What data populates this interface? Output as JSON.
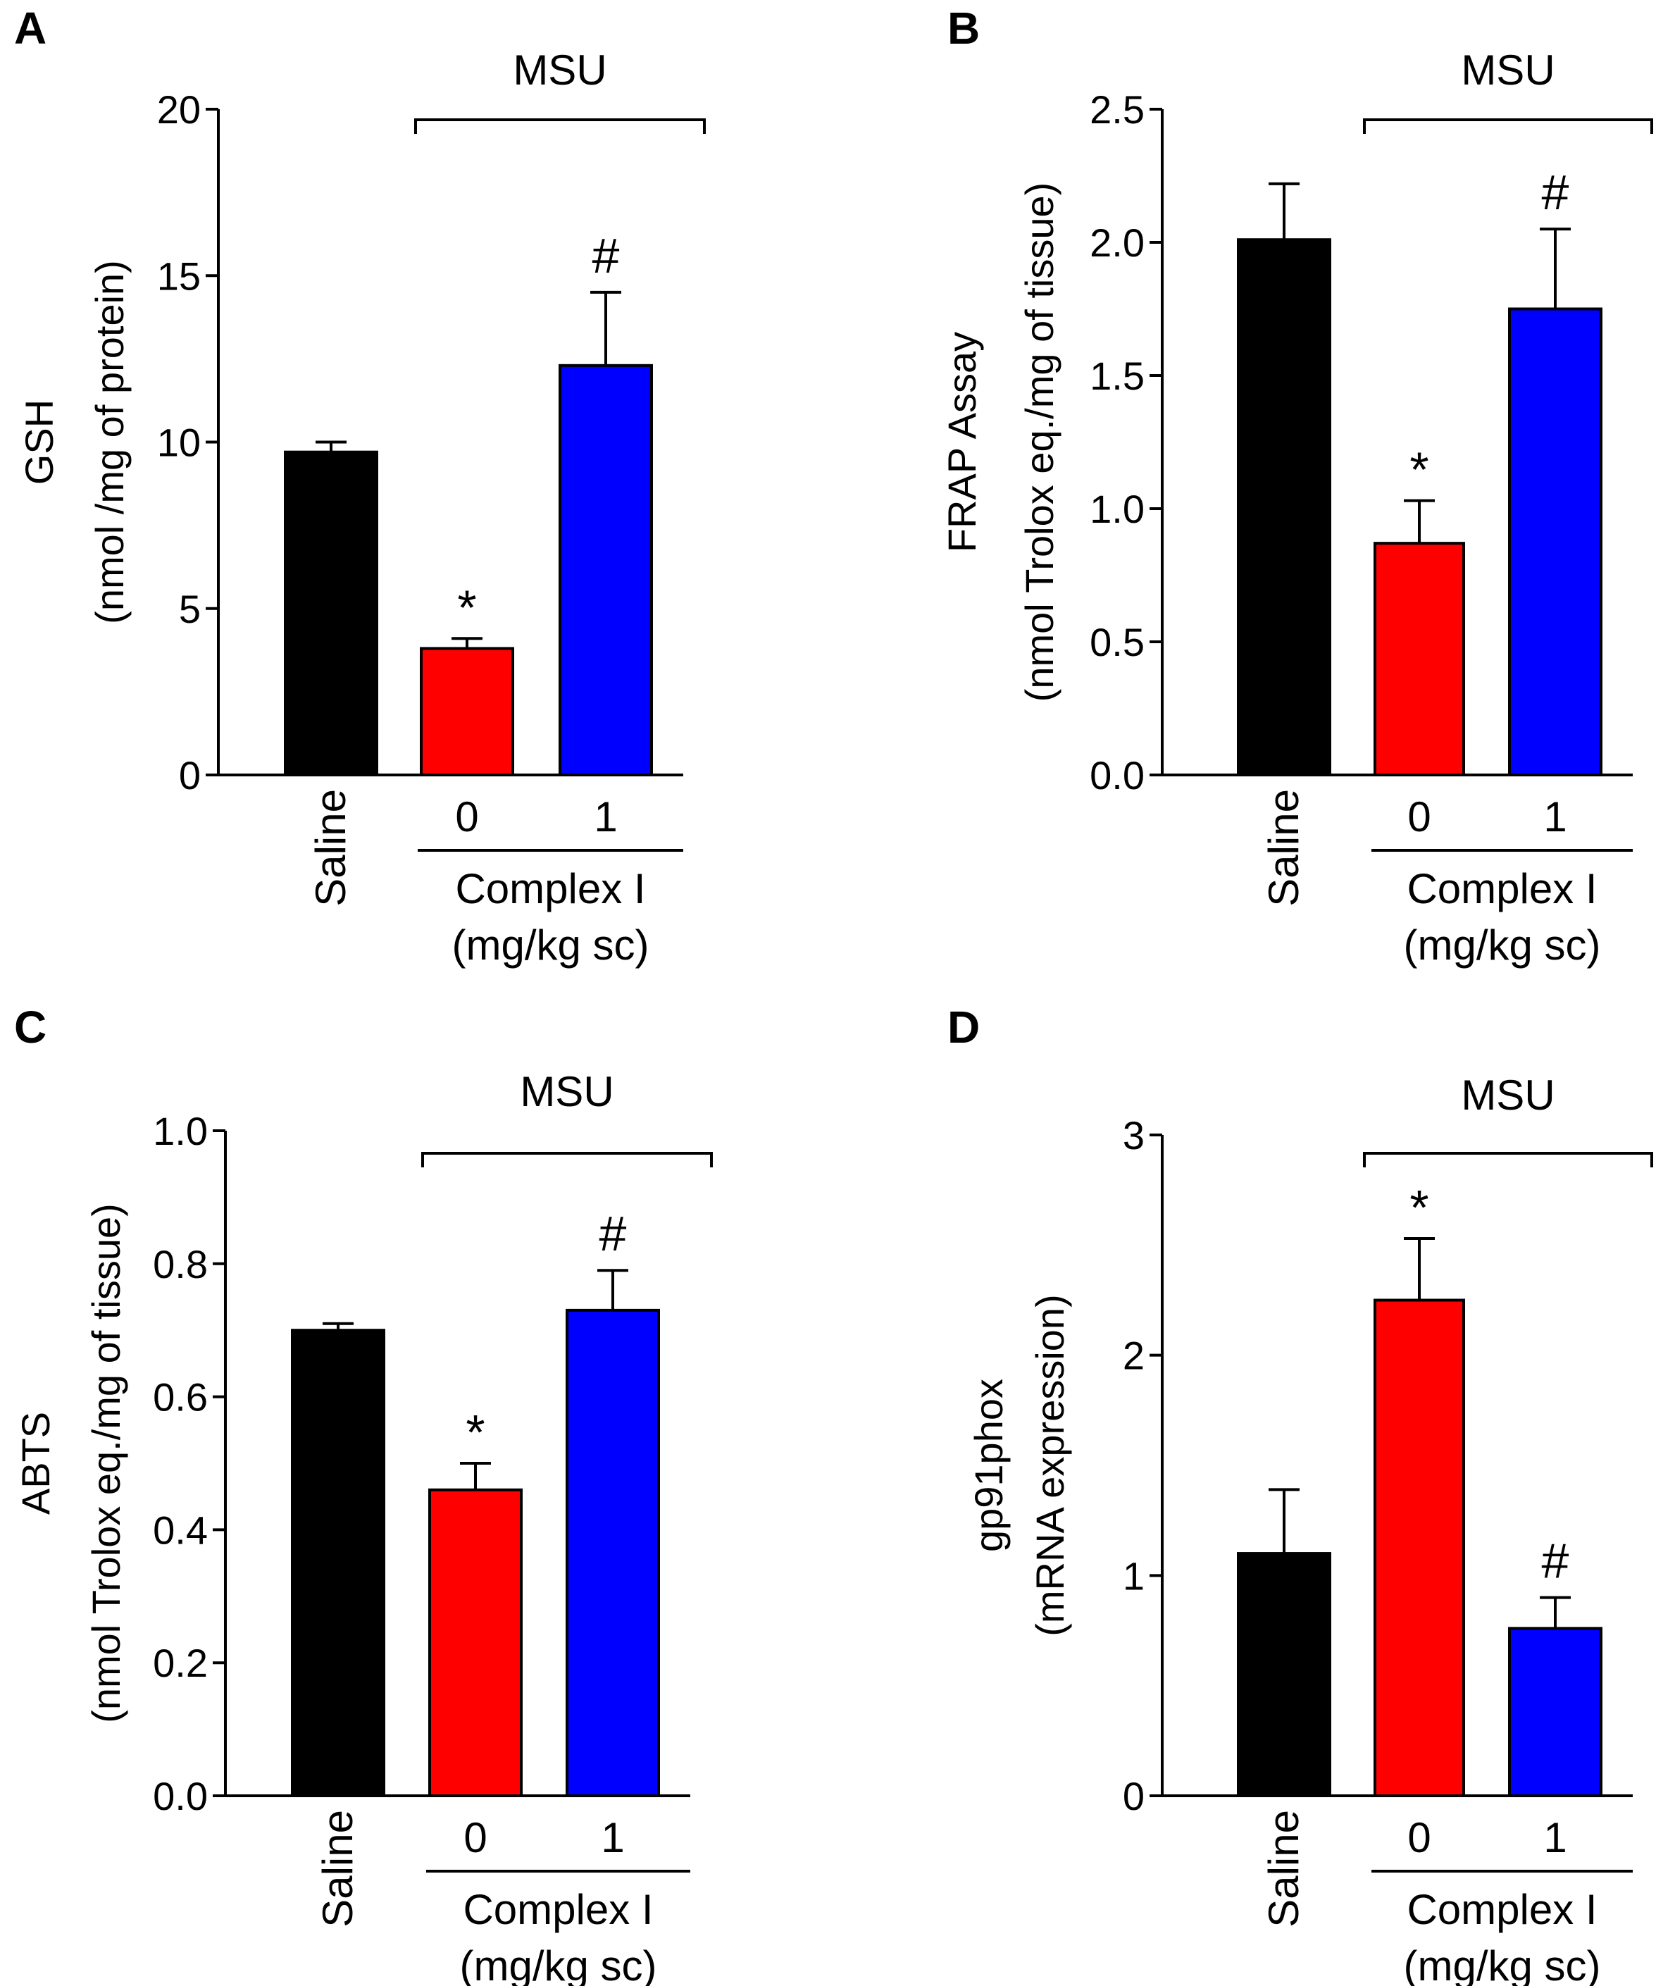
{
  "chart_data": [
    {
      "panel": "A",
      "type": "bar",
      "categories": [
        "Saline",
        "0",
        "1"
      ],
      "values": [
        9.7,
        3.8,
        12.3
      ],
      "errors": [
        0.3,
        0.3,
        2.2
      ],
      "colors": [
        "#000000",
        "#ff0000",
        "#0000ff"
      ],
      "significance": [
        "",
        "*",
        "#"
      ],
      "ylabel_line1": "GSH",
      "ylabel_line2": "(nmol /mg of protein)",
      "ylim": [
        0,
        20
      ],
      "yticks": [
        0,
        5,
        10,
        15,
        20
      ],
      "ytick_labels": [
        "0",
        "5",
        "10",
        "15",
        "20"
      ],
      "bracket_label": "MSU",
      "group_label_line1": "Complex I",
      "group_label_line2": "(mg/kg sc)"
    },
    {
      "panel": "B",
      "type": "bar",
      "categories": [
        "Saline",
        "0",
        "1"
      ],
      "values": [
        2.01,
        0.87,
        1.75
      ],
      "errors": [
        0.21,
        0.16,
        0.3
      ],
      "colors": [
        "#000000",
        "#ff0000",
        "#0000ff"
      ],
      "significance": [
        "",
        "*",
        "#"
      ],
      "ylabel_line1": "FRAP Assay",
      "ylabel_line2": "(nmol Trolox eq./mg of tissue)",
      "ylim": [
        0,
        2.5
      ],
      "yticks": [
        0,
        0.5,
        1.0,
        1.5,
        2.0,
        2.5
      ],
      "ytick_labels": [
        "0.0",
        "0.5",
        "1.0",
        "1.5",
        "2.0",
        "2.5"
      ],
      "bracket_label": "MSU",
      "group_label_line1": "Complex I",
      "group_label_line2": "(mg/kg sc)"
    },
    {
      "panel": "C",
      "type": "bar",
      "categories": [
        "Saline",
        "0",
        "1"
      ],
      "values": [
        0.7,
        0.46,
        0.73
      ],
      "errors": [
        0.01,
        0.04,
        0.06
      ],
      "colors": [
        "#000000",
        "#ff0000",
        "#0000ff"
      ],
      "significance": [
        "",
        "*",
        "#"
      ],
      "ylabel_line1": "ABTS",
      "ylabel_line2": "(nmol Trolox eq./mg of tissue)",
      "ylim": [
        0,
        1.0
      ],
      "yticks": [
        0,
        0.2,
        0.4,
        0.6,
        0.8,
        1.0
      ],
      "ytick_labels": [
        "0.0",
        "0.2",
        "0.4",
        "0.6",
        "0.8",
        "1.0"
      ],
      "bracket_label": "MSU",
      "group_label_line1": "Complex I",
      "group_label_line2": "(mg/kg sc)"
    },
    {
      "panel": "D",
      "type": "bar",
      "categories": [
        "Saline",
        "0",
        "1"
      ],
      "values": [
        1.1,
        2.25,
        0.76
      ],
      "errors": [
        0.29,
        0.28,
        0.14
      ],
      "colors": [
        "#000000",
        "#ff0000",
        "#0000ff"
      ],
      "significance": [
        "",
        "*",
        "#"
      ],
      "ylabel_line1": "gp91phox",
      "ylabel_line2": "(mRNA expression)",
      "ylim": [
        0,
        3
      ],
      "yticks": [
        0,
        1,
        2,
        3
      ],
      "ytick_labels": [
        "0",
        "1",
        "2",
        "3"
      ],
      "bracket_label": "MSU",
      "group_label_line1": "Complex I",
      "group_label_line2": "(mg/kg sc)"
    }
  ]
}
